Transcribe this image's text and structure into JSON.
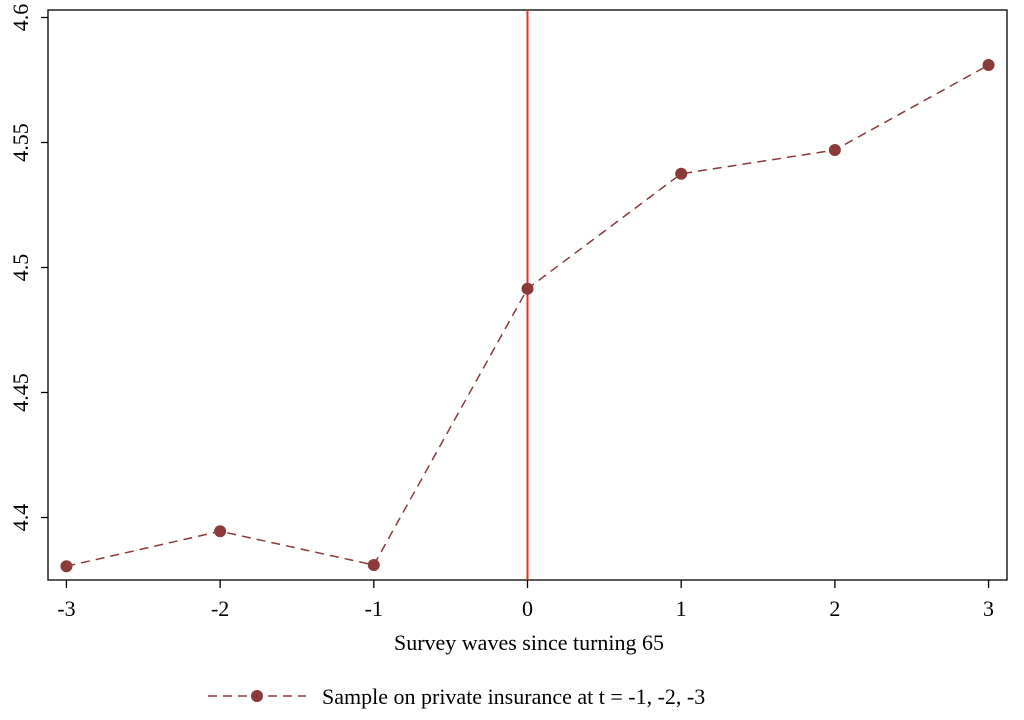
{
  "chart_data": {
    "type": "line",
    "title": "",
    "xlabel": "Survey waves since turning 65",
    "ylabel": "",
    "xlim": [
      -3,
      3
    ],
    "ylim": [
      4.375,
      4.6
    ],
    "x_ticks": [
      "-3",
      "-2",
      "-1",
      "0",
      "1",
      "2",
      "3"
    ],
    "y_ticks": [
      "4.4",
      "4.45",
      "4.5",
      "4.55",
      "4.6"
    ],
    "x_tick_values": [
      -3,
      -2,
      -1,
      0,
      1,
      2,
      3
    ],
    "y_tick_values": [
      4.4,
      4.45,
      4.5,
      4.55,
      4.6
    ],
    "reference_line": {
      "x": 0,
      "color": "#e8302a"
    },
    "series": [
      {
        "name": "Sample on private insurance at t = -1, -2, -3",
        "color": "#8b3a3a",
        "line_style": "dashed",
        "marker": "circle",
        "x": [
          -3,
          -2,
          -1,
          0,
          1,
          2,
          3
        ],
        "y": [
          4.3805,
          4.3945,
          4.381,
          4.4915,
          4.5375,
          4.547,
          4.581
        ]
      }
    ],
    "legend": {
      "position": "bottom-center"
    },
    "grid": false
  }
}
